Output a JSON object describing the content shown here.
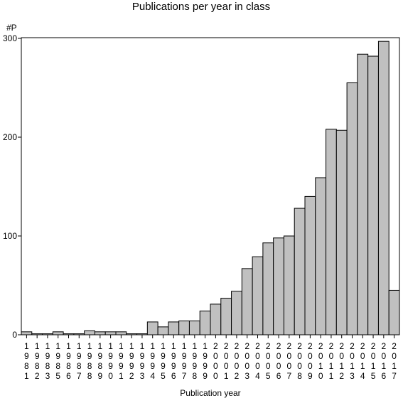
{
  "chart_data": {
    "type": "bar",
    "title": "Publications per year in class",
    "ylabel": "#P",
    "xlabel": "Publication year",
    "ylim": [
      0,
      300
    ],
    "yticks": [
      0,
      100,
      200,
      300
    ],
    "grid": false,
    "bar_color": "#c0c0c0",
    "categories": [
      "1981",
      "1982",
      "1983",
      "1985",
      "1986",
      "1987",
      "1988",
      "1989",
      "1990",
      "1991",
      "1992",
      "1993",
      "1994",
      "1995",
      "1996",
      "1997",
      "1998",
      "1999",
      "2000",
      "2001",
      "2002",
      "2003",
      "2004",
      "2005",
      "2006",
      "2007",
      "2008",
      "2009",
      "2010",
      "2011",
      "2012",
      "2013",
      "2014",
      "2015",
      "2016",
      "2017"
    ],
    "values": [
      3,
      1,
      1,
      3,
      1,
      1,
      4,
      3,
      3,
      3,
      1,
      1,
      13,
      8,
      13,
      14,
      14,
      24,
      31,
      37,
      44,
      67,
      79,
      93,
      98,
      100,
      128,
      140,
      159,
      208,
      207,
      255,
      284,
      282,
      297,
      45
    ]
  }
}
